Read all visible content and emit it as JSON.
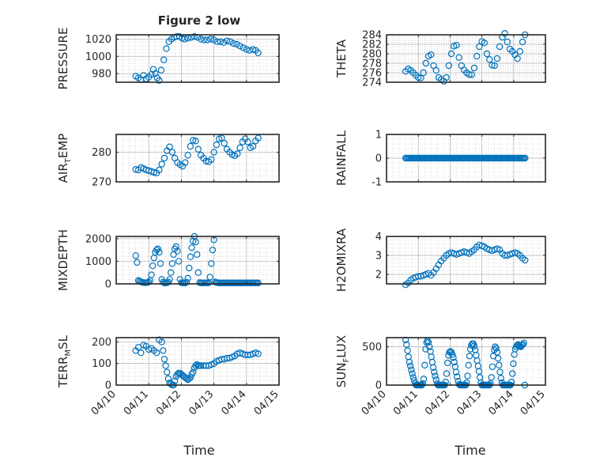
{
  "figure": {
    "title": "Figure 2 low",
    "xlabel": "Time"
  },
  "colors": {
    "marker": "#0072BD",
    "axis": "#262626",
    "grid": "#c8c8c8"
  },
  "chart_data": [
    {
      "id": "pressure",
      "type": "scatter",
      "ylabel": "PRESSURE",
      "ylim": [
        970,
        1025
      ],
      "yticks": [
        980,
        1000,
        1020
      ],
      "ytick_labels": [
        "980",
        "1000",
        "1020"
      ],
      "xlim": [
        0,
        5
      ],
      "xticks": [
        0,
        1,
        2,
        3,
        4,
        5
      ],
      "xtick_labels": [
        "04/10",
        "04/11",
        "04/12",
        "04/13",
        "04/14",
        "04/15"
      ],
      "show_xtick_labels": false,
      "x": [
        0.6,
        0.68,
        0.76,
        0.84,
        0.92,
        1.0,
        1.08,
        1.14,
        1.2,
        1.26,
        1.32,
        1.38,
        1.46,
        1.54,
        1.62,
        1.7,
        1.78,
        1.86,
        1.94,
        2.02,
        2.1,
        2.2,
        2.3,
        2.4,
        2.5,
        2.6,
        2.7,
        2.8,
        2.9,
        3.0,
        3.1,
        3.2,
        3.3,
        3.4,
        3.5,
        3.6,
        3.7,
        3.8,
        3.9,
        4.0,
        4.1,
        4.2,
        4.28,
        4.36
      ],
      "y": [
        977,
        975,
        973,
        978,
        974,
        976,
        979,
        985,
        980,
        975,
        972,
        984,
        996,
        1009,
        1017,
        1020,
        1022,
        1023,
        1023,
        1021,
        1020,
        1021,
        1022,
        1023,
        1022,
        1020,
        1019,
        1019,
        1020,
        1019,
        1017,
        1017,
        1016,
        1018,
        1017,
        1015,
        1014,
        1012,
        1010,
        1008,
        1007,
        1008,
        1007,
        1004
      ]
    },
    {
      "id": "theta",
      "type": "scatter",
      "ylabel": "THETA",
      "ylim": [
        274,
        284
      ],
      "yticks": [
        274,
        276,
        278,
        280,
        282,
        284
      ],
      "ytick_labels": [
        "274",
        "276",
        "278",
        "280",
        "282",
        "284"
      ],
      "xlim": [
        0,
        5
      ],
      "xticks": [
        0,
        1,
        2,
        3,
        4,
        5
      ],
      "xtick_labels": [
        "04/10",
        "04/11",
        "04/12",
        "04/13",
        "04/14",
        "04/15"
      ],
      "show_xtick_labels": false,
      "x": [
        0.6,
        0.68,
        0.76,
        0.84,
        0.92,
        1.0,
        1.08,
        1.16,
        1.24,
        1.32,
        1.4,
        1.48,
        1.56,
        1.64,
        1.72,
        1.8,
        1.88,
        1.96,
        2.04,
        2.12,
        2.2,
        2.28,
        2.36,
        2.44,
        2.52,
        2.6,
        2.68,
        2.76,
        2.84,
        2.92,
        3.0,
        3.08,
        3.16,
        3.24,
        3.32,
        3.4,
        3.48,
        3.56,
        3.64,
        3.72,
        3.8,
        3.88,
        3.96,
        4.04,
        4.12,
        4.2,
        4.28,
        4.36
      ],
      "y": [
        276.3,
        276.8,
        276.5,
        276.0,
        275.5,
        275.0,
        274.9,
        276.0,
        278.0,
        279.5,
        279.8,
        277.5,
        276.5,
        275.0,
        274.6,
        274.2,
        275.0,
        277.5,
        280.0,
        281.6,
        281.8,
        279.2,
        277.5,
        276.6,
        276.0,
        275.6,
        275.6,
        277.0,
        279.5,
        281.5,
        282.6,
        282.3,
        280.0,
        278.8,
        277.6,
        277.5,
        279.0,
        281.5,
        283.5,
        284.3,
        282.5,
        281.0,
        280.5,
        279.8,
        279.0,
        280.5,
        282.5,
        284.0
      ]
    },
    {
      "id": "air_temp",
      "type": "scatter",
      "ylabel": "AIR",
      "ylabel_sub": "T",
      "ylabel_tail": "EMP",
      "ylim": [
        270,
        286
      ],
      "yticks": [
        270,
        280
      ],
      "ytick_labels": [
        "270",
        "280"
      ],
      "xlim": [
        0,
        5
      ],
      "xticks": [
        0,
        1,
        2,
        3,
        4,
        5
      ],
      "xtick_labels": [
        "04/10",
        "04/11",
        "04/12",
        "04/13",
        "04/14",
        "04/15"
      ],
      "show_xtick_labels": false,
      "x": [
        0.6,
        0.68,
        0.76,
        0.84,
        0.92,
        1.0,
        1.08,
        1.16,
        1.24,
        1.32,
        1.4,
        1.48,
        1.56,
        1.64,
        1.72,
        1.8,
        1.88,
        1.96,
        2.04,
        2.12,
        2.2,
        2.28,
        2.36,
        2.44,
        2.52,
        2.6,
        2.68,
        2.76,
        2.84,
        2.92,
        3.0,
        3.08,
        3.16,
        3.24,
        3.32,
        3.4,
        3.48,
        3.56,
        3.64,
        3.72,
        3.8,
        3.88,
        3.96,
        4.04,
        4.12,
        4.2,
        4.28,
        4.36
      ],
      "y": [
        274.2,
        274.0,
        274.8,
        274.5,
        274.0,
        273.8,
        273.5,
        273.2,
        273.0,
        274.0,
        276.0,
        278.0,
        280.5,
        281.8,
        280.0,
        278.0,
        276.5,
        275.8,
        275.3,
        276.5,
        279.0,
        282.0,
        284.0,
        283.8,
        281.0,
        279.0,
        278.0,
        277.0,
        276.8,
        277.5,
        280.0,
        282.5,
        284.5,
        284.8,
        283.0,
        281.0,
        280.0,
        279.2,
        278.8,
        279.5,
        281.5,
        283.5,
        284.5,
        283.5,
        281.5,
        282.0,
        283.8,
        284.8
      ]
    },
    {
      "id": "rainfall",
      "type": "scatter",
      "ylabel": "RAINFALL",
      "ylim": [
        -1,
        1
      ],
      "yticks": [
        -1,
        0,
        1
      ],
      "ytick_labels": [
        "-1",
        "0",
        "1"
      ],
      "xlim": [
        0,
        5
      ],
      "xticks": [
        0,
        1,
        2,
        3,
        4,
        5
      ],
      "xtick_labels": [
        "04/10",
        "04/11",
        "04/12",
        "04/13",
        "04/14",
        "04/15"
      ],
      "show_xtick_labels": false,
      "x_start": 0.6,
      "x_end": 4.36,
      "x_step": 0.04,
      "value": 0
    },
    {
      "id": "mixdepth",
      "type": "scatter",
      "ylabel": "MIXDEPTH",
      "ylim": [
        0,
        2100
      ],
      "yticks": [
        0,
        1000,
        2000
      ],
      "ytick_labels": [
        "0",
        "1000",
        "2000"
      ],
      "xlim": [
        0,
        5
      ],
      "xticks": [
        0,
        1,
        2,
        3,
        4,
        5
      ],
      "xtick_labels": [
        "04/10",
        "04/11",
        "04/12",
        "04/13",
        "04/14",
        "04/15"
      ],
      "show_xtick_labels": false,
      "x": [
        0.6,
        0.64,
        0.68,
        0.72,
        0.76,
        0.8,
        0.84,
        0.88,
        0.92,
        0.96,
        1.0,
        1.04,
        1.08,
        1.12,
        1.16,
        1.2,
        1.24,
        1.28,
        1.32,
        1.36,
        1.4,
        1.44,
        1.48,
        1.52,
        1.56,
        1.6,
        1.64,
        1.68,
        1.72,
        1.76,
        1.8,
        1.84,
        1.88,
        1.92,
        1.96,
        2.0,
        2.04,
        2.08,
        2.12,
        2.16,
        2.2,
        2.24,
        2.28,
        2.32,
        2.36,
        2.4,
        2.44,
        2.48,
        2.52,
        2.56,
        2.6,
        2.64,
        2.68,
        2.72,
        2.76,
        2.8,
        2.84,
        2.88,
        2.92,
        2.96,
        3.0,
        3.04,
        3.08,
        3.12,
        3.16,
        3.2,
        3.24,
        3.28,
        3.32,
        3.36,
        3.4,
        3.44,
        3.48,
        3.52,
        3.56,
        3.6,
        3.64,
        3.68,
        3.72,
        3.76,
        3.8,
        3.84,
        3.88,
        3.92,
        3.96,
        4.0,
        4.04,
        4.08,
        4.12,
        4.16,
        4.2,
        4.24,
        4.28,
        4.32,
        4.36
      ],
      "y": [
        1250,
        950,
        150,
        120,
        90,
        70,
        60,
        50,
        50,
        60,
        80,
        150,
        400,
        800,
        1150,
        1400,
        1500,
        1550,
        1400,
        900,
        200,
        80,
        40,
        40,
        50,
        80,
        200,
        500,
        900,
        1300,
        1550,
        1650,
        1450,
        1000,
        200,
        50,
        40,
        40,
        40,
        80,
        250,
        700,
        1200,
        1600,
        1900,
        2100,
        1850,
        1300,
        500,
        60,
        40,
        40,
        40,
        40,
        40,
        40,
        50,
        300,
        900,
        1500,
        1950,
        80,
        60,
        50,
        40,
        40,
        40,
        40,
        40,
        40,
        40,
        40,
        40,
        40,
        40,
        40,
        40,
        40,
        40,
        40,
        40,
        40,
        40,
        40,
        40,
        40,
        40,
        40,
        40,
        40,
        40,
        40,
        40,
        40,
        40
      ]
    },
    {
      "id": "h2omixra",
      "type": "scatter",
      "ylabel": "H2OMIXRA",
      "ylim": [
        1.5,
        4
      ],
      "yticks": [
        2,
        3,
        4
      ],
      "ytick_labels": [
        "2",
        "3",
        "4"
      ],
      "xlim": [
        0,
        5
      ],
      "xticks": [
        0,
        1,
        2,
        3,
        4,
        5
      ],
      "xtick_labels": [
        "04/10",
        "04/11",
        "04/12",
        "04/13",
        "04/14",
        "04/15"
      ],
      "show_xtick_labels": false,
      "x": [
        0.6,
        0.68,
        0.76,
        0.84,
        0.92,
        1.0,
        1.08,
        1.16,
        1.24,
        1.32,
        1.4,
        1.48,
        1.56,
        1.64,
        1.72,
        1.8,
        1.88,
        1.96,
        2.04,
        2.12,
        2.2,
        2.28,
        2.36,
        2.44,
        2.52,
        2.6,
        2.68,
        2.76,
        2.84,
        2.92,
        3.0,
        3.08,
        3.16,
        3.24,
        3.32,
        3.4,
        3.48,
        3.56,
        3.64,
        3.72,
        3.8,
        3.88,
        3.96,
        4.04,
        4.12,
        4.2,
        4.28,
        4.36
      ],
      "y": [
        1.45,
        1.55,
        1.7,
        1.8,
        1.85,
        1.9,
        1.9,
        1.95,
        2.0,
        2.05,
        1.95,
        2.1,
        2.3,
        2.5,
        2.7,
        2.85,
        3.0,
        3.1,
        3.15,
        3.1,
        3.05,
        3.1,
        3.15,
        3.2,
        3.15,
        3.1,
        3.2,
        3.3,
        3.45,
        3.55,
        3.5,
        3.45,
        3.35,
        3.3,
        3.25,
        3.3,
        3.35,
        3.3,
        3.1,
        3.0,
        3.0,
        3.05,
        3.1,
        3.15,
        3.1,
        3.0,
        2.85,
        2.75
      ]
    },
    {
      "id": "terr_msl",
      "type": "scatter",
      "ylabel": "TERR",
      "ylabel_sub": "M",
      "ylabel_tail": "SL",
      "ylim": [
        0,
        220
      ],
      "yticks": [
        0,
        100,
        200
      ],
      "ytick_labels": [
        "0",
        "100",
        "200"
      ],
      "xlim": [
        0,
        5
      ],
      "xticks": [
        0,
        1,
        2,
        3,
        4,
        5
      ],
      "xtick_labels": [
        "04/10",
        "04/11",
        "04/12",
        "04/13",
        "04/14",
        "04/15"
      ],
      "show_xtick_labels": true,
      "x": [
        0.6,
        0.68,
        0.76,
        0.84,
        0.92,
        1.0,
        1.08,
        1.16,
        1.24,
        1.32,
        1.4,
        1.44,
        1.48,
        1.52,
        1.56,
        1.6,
        1.64,
        1.68,
        1.72,
        1.76,
        1.8,
        1.84,
        1.88,
        1.92,
        1.96,
        2.0,
        2.04,
        2.08,
        2.12,
        2.16,
        2.2,
        2.24,
        2.28,
        2.32,
        2.36,
        2.4,
        2.44,
        2.48,
        2.52,
        2.56,
        2.6,
        2.68,
        2.76,
        2.84,
        2.92,
        3.0,
        3.08,
        3.16,
        3.24,
        3.32,
        3.4,
        3.48,
        3.56,
        3.64,
        3.72,
        3.8,
        3.88,
        3.96,
        4.04,
        4.12,
        4.2,
        4.28,
        4.36
      ],
      "y": [
        160,
        175,
        150,
        185,
        180,
        165,
        170,
        160,
        150,
        210,
        200,
        160,
        120,
        90,
        60,
        30,
        10,
        5,
        0,
        0,
        20,
        40,
        50,
        55,
        55,
        50,
        45,
        40,
        35,
        30,
        25,
        30,
        35,
        50,
        60,
        80,
        90,
        95,
        90,
        90,
        90,
        90,
        90,
        90,
        95,
        100,
        110,
        115,
        120,
        120,
        125,
        125,
        130,
        135,
        145,
        150,
        145,
        140,
        140,
        140,
        145,
        150,
        145
      ]
    },
    {
      "id": "sun_flux",
      "type": "scatter",
      "ylabel": "SUN",
      "ylabel_sub": "F",
      "ylabel_tail": "LUX",
      "ylim": [
        0,
        620
      ],
      "yticks": [
        0,
        500
      ],
      "ytick_labels": [
        "0",
        "500"
      ],
      "xlim": [
        0,
        5
      ],
      "xticks": [
        0,
        1,
        2,
        3,
        4,
        5
      ],
      "xtick_labels": [
        "04/10",
        "04/11",
        "04/12",
        "04/13",
        "04/14",
        "04/15"
      ],
      "show_xtick_labels": true,
      "x": [
        0.6,
        0.63,
        0.66,
        0.69,
        0.72,
        0.75,
        0.78,
        0.81,
        0.84,
        0.87,
        0.9,
        0.93,
        0.96,
        0.99,
        1.02,
        1.05,
        1.08,
        1.11,
        1.14,
        1.17,
        1.2,
        1.23,
        1.26,
        1.29,
        1.32,
        1.35,
        1.38,
        1.41,
        1.44,
        1.47,
        1.5,
        1.53,
        1.56,
        1.59,
        1.62,
        1.65,
        1.68,
        1.71,
        1.74,
        1.77,
        1.8,
        1.83,
        1.86,
        1.89,
        1.92,
        1.95,
        1.98,
        2.01,
        2.04,
        2.07,
        2.1,
        2.13,
        2.16,
        2.19,
        2.22,
        2.25,
        2.28,
        2.31,
        2.34,
        2.37,
        2.4,
        2.43,
        2.46,
        2.49,
        2.52,
        2.55,
        2.58,
        2.61,
        2.64,
        2.67,
        2.7,
        2.73,
        2.76,
        2.79,
        2.82,
        2.85,
        2.88,
        2.91,
        2.94,
        2.97,
        3.0,
        3.03,
        3.06,
        3.09,
        3.12,
        3.15,
        3.18,
        3.21,
        3.24,
        3.27,
        3.3,
        3.33,
        3.36,
        3.39,
        3.42,
        3.45,
        3.48,
        3.51,
        3.54,
        3.57,
        3.6,
        3.63,
        3.66,
        3.69,
        3.72,
        3.75,
        3.78,
        3.81,
        3.84,
        3.87,
        3.9,
        3.93,
        3.96,
        3.99,
        4.02,
        4.05,
        4.08,
        4.11,
        4.14,
        4.17,
        4.2,
        4.23,
        4.26,
        4.29,
        4.32,
        4.35
      ],
      "y": [
        590,
        530,
        450,
        370,
        300,
        250,
        200,
        150,
        100,
        60,
        20,
        0,
        0,
        0,
        0,
        0,
        0,
        0,
        20,
        80,
        260,
        470,
        560,
        580,
        560,
        500,
        440,
        370,
        300,
        230,
        170,
        120,
        70,
        20,
        0,
        0,
        0,
        0,
        0,
        0,
        0,
        0,
        40,
        150,
        290,
        390,
        430,
        440,
        430,
        400,
        360,
        300,
        240,
        170,
        110,
        50,
        10,
        0,
        0,
        0,
        0,
        0,
        0,
        0,
        30,
        120,
        260,
        380,
        470,
        520,
        540,
        540,
        510,
        460,
        390,
        320,
        250,
        180,
        100,
        30,
        0,
        0,
        0,
        0,
        0,
        0,
        0,
        0,
        0,
        20,
        100,
        240,
        380,
        460,
        500,
        480,
        430,
        350,
        260,
        170,
        90,
        30,
        0,
        0,
        0,
        0,
        0,
        0,
        0,
        0,
        0,
        40,
        150,
        280,
        400,
        470,
        500,
        520,
        530,
        520,
        510,
        500,
        520,
        530,
        550,
        0
      ]
    }
  ]
}
